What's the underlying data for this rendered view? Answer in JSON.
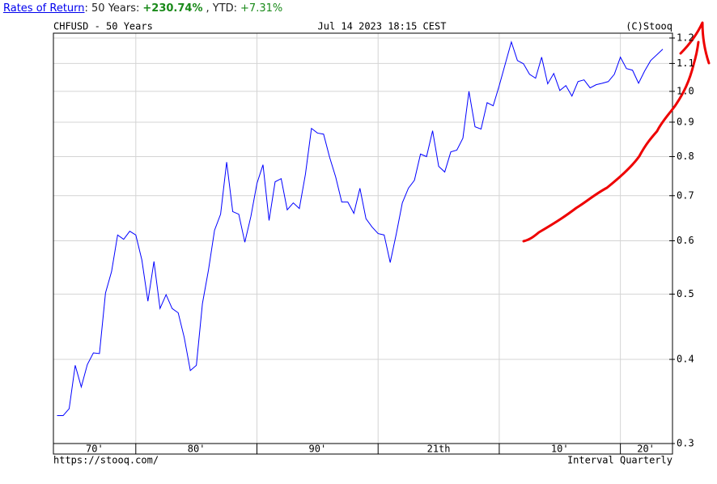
{
  "header": {
    "link": "Rates of Return",
    "period": ": 50 Years:",
    "total_return": "+230.74%",
    "ytd_label": ", YTD:",
    "ytd": "+7.31%"
  },
  "chart_data": {
    "type": "line",
    "title": "CHFUSD - 50 Years",
    "date": "Jul 14 2023 18:15 CEST",
    "credit": "(C)Stooq",
    "url": "https://stooq.com/",
    "interval": "Interval Quarterly",
    "color": "#0000ff",
    "log": true,
    "grid": true,
    "xlim": [
      1973.2,
      2024.3
    ],
    "ylim": [
      0.3,
      1.22
    ],
    "xticks": [
      {
        "value": 1976.6,
        "label": "70'"
      },
      {
        "value": 1985,
        "label": "80'"
      },
      {
        "value": 1995,
        "label": "90'"
      },
      {
        "value": 2005,
        "label": "21th"
      },
      {
        "value": 2015,
        "label": "10'"
      },
      {
        "value": 2022.1,
        "label": "20'"
      }
    ],
    "xgrid": [
      1980,
      1990,
      2000,
      2010,
      2020
    ],
    "yticks": [
      0.3,
      0.4,
      0.5,
      0.6,
      0.7,
      0.8,
      0.9,
      {
        "value": 1,
        "label": "1.0"
      },
      1.1,
      1.2
    ],
    "x": [
      1973.5,
      1974,
      1974.5,
      1975,
      1975.5,
      1976,
      1976.5,
      1977,
      1977.5,
      1978,
      1978.5,
      1979,
      1979.5,
      1980,
      1980.5,
      1981,
      1981.5,
      1982,
      1982.5,
      1983,
      1983.5,
      1984,
      1984.5,
      1985,
      1985.5,
      1986,
      1986.5,
      1987,
      1987.5,
      1988,
      1988.5,
      1989,
      1989.5,
      1990,
      1990.5,
      1991,
      1991.5,
      1992,
      1992.5,
      1993,
      1993.5,
      1994,
      1994.5,
      1995,
      1995.5,
      1996,
      1996.5,
      1997,
      1997.5,
      1998,
      1998.5,
      1999,
      1999.5,
      2000,
      2000.5,
      2001,
      2001.5,
      2002,
      2002.5,
      2003,
      2003.5,
      2004,
      2004.5,
      2005,
      2005.5,
      2006,
      2006.5,
      2007,
      2007.5,
      2008,
      2008.5,
      2009,
      2009.5,
      2010,
      2010.5,
      2011,
      2011.5,
      2012,
      2012.5,
      2013,
      2013.5,
      2014,
      2014.5,
      2015,
      2015.5,
      2016,
      2016.5,
      2017,
      2017.5,
      2018,
      2018.5,
      2019,
      2019.5,
      2020,
      2020.5,
      2021,
      2021.5,
      2022,
      2022.5,
      2023.5
    ],
    "values": [
      0.33,
      0.33,
      0.338,
      0.392,
      0.364,
      0.393,
      0.409,
      0.408,
      0.502,
      0.54,
      0.612,
      0.603,
      0.62,
      0.612,
      0.562,
      0.488,
      0.559,
      0.476,
      0.499,
      0.476,
      0.469,
      0.431,
      0.385,
      0.392,
      0.484,
      0.543,
      0.622,
      0.657,
      0.785,
      0.663,
      0.657,
      0.597,
      0.652,
      0.73,
      0.778,
      0.643,
      0.734,
      0.742,
      0.667,
      0.683,
      0.67,
      0.753,
      0.881,
      0.867,
      0.864,
      0.798,
      0.746,
      0.685,
      0.685,
      0.659,
      0.718,
      0.647,
      0.629,
      0.615,
      0.612,
      0.557,
      0.614,
      0.683,
      0.718,
      0.738,
      0.807,
      0.8,
      0.874,
      0.774,
      0.759,
      0.813,
      0.818,
      0.852,
      1.0,
      0.886,
      0.879,
      0.962,
      0.952,
      1.02,
      1.099,
      1.184,
      1.111,
      1.099,
      1.06,
      1.046,
      1.124,
      1.026,
      1.063,
      1.003,
      1.02,
      0.984,
      1.034,
      1.04,
      1.012,
      1.023,
      1.028,
      1.034,
      1.06,
      1.124,
      1.081,
      1.075,
      1.028,
      1.072,
      1.111,
      1.155
    ]
  }
}
